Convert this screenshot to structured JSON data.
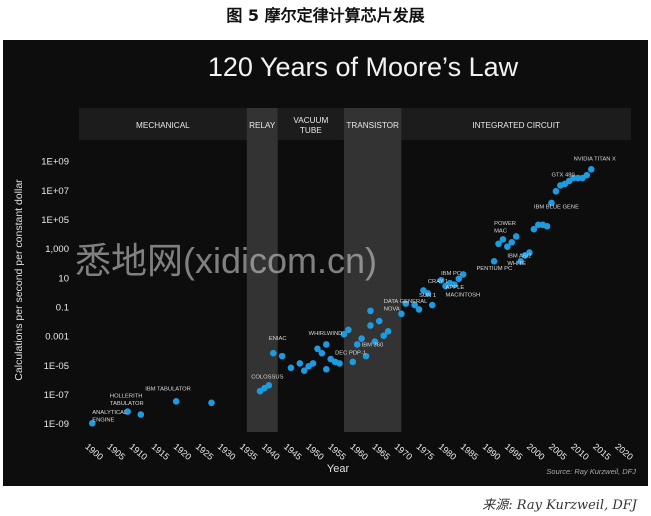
{
  "figure_caption": "图 5 摩尔定律计算芯片发展",
  "source_line": "来源: Ray Kurzweil, DFJ",
  "watermark": "悉地网(xidicom.cn)",
  "colors": {
    "panel_bg": "#0d0d0d",
    "point": "#1e9ae0",
    "band_shade": "#333333",
    "text": "#e8e8e8"
  },
  "chart_data": {
    "type": "scatter",
    "title": "120 Years of Moore’s Law",
    "xlabel": "Year",
    "ylabel": "Calculations per second per constant dollar",
    "source_note": "Source: Ray Kurzweil, DFJ",
    "log_scale_y": true,
    "xlim": [
      1897,
      2022
    ],
    "ylim_exponent": [
      -9.6,
      10.0
    ],
    "x_ticks": [
      "1900",
      "1905",
      "1910",
      "1915",
      "1920",
      "1925",
      "1930",
      "1935",
      "1940",
      "1945",
      "1950",
      "1955",
      "1960",
      "1965",
      "1970",
      "1975",
      "1980",
      "1985",
      "1990",
      "1995",
      "2000",
      "2005",
      "2010",
      "2015",
      "2020"
    ],
    "x_tick_values": [
      1900,
      1905,
      1910,
      1915,
      1920,
      1925,
      1930,
      1935,
      1940,
      1945,
      1950,
      1955,
      1960,
      1965,
      1970,
      1975,
      1980,
      1985,
      1990,
      1995,
      2000,
      2005,
      2010,
      2015,
      2020
    ],
    "y_ticks": [
      "1E+09",
      "1E+07",
      "1E+05",
      "1,000",
      "10",
      "0.1",
      "0.001",
      "1E-05",
      "1E-07",
      "1E-09"
    ],
    "y_tick_exponents": [
      9,
      7,
      5,
      3,
      1,
      -1,
      -3,
      -5,
      -7,
      -9
    ],
    "eras": [
      {
        "label": "MECHANICAL",
        "start": 1897,
        "end": 1935,
        "shaded": false
      },
      {
        "label": "RELAY",
        "start": 1935,
        "end": 1942,
        "shaded": true
      },
      {
        "label": "VACUUM TUBE",
        "start": 1942,
        "end": 1957,
        "shaded": false
      },
      {
        "label": "TRANSISTOR",
        "start": 1957,
        "end": 1970,
        "shaded": true
      },
      {
        "label": "INTEGRATED CIRCUIT",
        "start": 1970,
        "end": 2022,
        "shaded": false
      }
    ],
    "points": [
      {
        "x": 1900,
        "log_y": -9.0
      },
      {
        "x": 1908,
        "log_y": -8.2
      },
      {
        "x": 1911,
        "log_y": -8.4
      },
      {
        "x": 1919,
        "log_y": -7.5
      },
      {
        "x": 1927,
        "log_y": -7.6
      },
      {
        "x": 1938,
        "log_y": -6.8
      },
      {
        "x": 1939,
        "log_y": -6.6
      },
      {
        "x": 1940,
        "log_y": -6.4
      },
      {
        "x": 1941,
        "log_y": -4.2
      },
      {
        "x": 1943,
        "log_y": -4.4
      },
      {
        "x": 1945,
        "log_y": -5.2
      },
      {
        "x": 1947,
        "log_y": -4.9
      },
      {
        "x": 1948,
        "log_y": -5.4
      },
      {
        "x": 1949,
        "log_y": -5.1
      },
      {
        "x": 1950,
        "log_y": -4.9
      },
      {
        "x": 1951,
        "log_y": -3.9
      },
      {
        "x": 1952,
        "log_y": -4.2
      },
      {
        "x": 1953,
        "log_y": -3.6
      },
      {
        "x": 1953,
        "log_y": -5.3
      },
      {
        "x": 1954,
        "log_y": -4.6
      },
      {
        "x": 1955,
        "log_y": -4.8
      },
      {
        "x": 1956,
        "log_y": -4.9
      },
      {
        "x": 1957,
        "log_y": -2.9
      },
      {
        "x": 1958,
        "log_y": -2.6
      },
      {
        "x": 1959,
        "log_y": -4.8
      },
      {
        "x": 1960,
        "log_y": -3.6
      },
      {
        "x": 1961,
        "log_y": -3.2
      },
      {
        "x": 1962,
        "log_y": -4.4
      },
      {
        "x": 1963,
        "log_y": -2.3
      },
      {
        "x": 1963,
        "log_y": -1.3
      },
      {
        "x": 1964,
        "log_y": -3.4
      },
      {
        "x": 1965,
        "log_y": -2.0
      },
      {
        "x": 1966,
        "log_y": -3.0
      },
      {
        "x": 1967,
        "log_y": -2.7
      },
      {
        "x": 1970,
        "log_y": -1.5
      },
      {
        "x": 1971,
        "log_y": -0.8
      },
      {
        "x": 1973,
        "log_y": -0.9
      },
      {
        "x": 1974,
        "log_y": -1.2
      },
      {
        "x": 1975,
        "log_y": 0.1
      },
      {
        "x": 1976,
        "log_y": -0.1
      },
      {
        "x": 1977,
        "log_y": -0.9
      },
      {
        "x": 1979,
        "log_y": 0.8
      },
      {
        "x": 1980,
        "log_y": 0.4
      },
      {
        "x": 1981,
        "log_y": 0.6
      },
      {
        "x": 1982,
        "log_y": 0.5
      },
      {
        "x": 1983,
        "log_y": 0.9
      },
      {
        "x": 1984,
        "log_y": 1.2
      },
      {
        "x": 1991,
        "log_y": 2.1
      },
      {
        "x": 1992,
        "log_y": 3.3
      },
      {
        "x": 1993,
        "log_y": 3.6
      },
      {
        "x": 1994,
        "log_y": 3.1
      },
      {
        "x": 1995,
        "log_y": 3.4
      },
      {
        "x": 1996,
        "log_y": 3.8
      },
      {
        "x": 1997,
        "log_y": 2.1
      },
      {
        "x": 1998,
        "log_y": 2.5
      },
      {
        "x": 1999,
        "log_y": 2.7
      },
      {
        "x": 2000,
        "log_y": 4.3
      },
      {
        "x": 2001,
        "log_y": 4.6
      },
      {
        "x": 2002,
        "log_y": 4.6
      },
      {
        "x": 2003,
        "log_y": 4.5
      },
      {
        "x": 2004,
        "log_y": 6.1
      },
      {
        "x": 2005,
        "log_y": 6.9
      },
      {
        "x": 2006,
        "log_y": 7.3
      },
      {
        "x": 2007,
        "log_y": 7.4
      },
      {
        "x": 2008,
        "log_y": 7.6
      },
      {
        "x": 2009,
        "log_y": 7.8
      },
      {
        "x": 2010,
        "log_y": 7.8
      },
      {
        "x": 2011,
        "log_y": 7.8
      },
      {
        "x": 2012,
        "log_y": 8.0
      },
      {
        "x": 2013,
        "log_y": 8.4
      }
    ],
    "annotations": [
      {
        "lines": [
          "ANALYTICAL",
          "ENGINE"
        ],
        "x": 1900,
        "log_y": -8.35
      },
      {
        "lines": [
          "HOLLERITH",
          "TABULATOR"
        ],
        "x": 1904,
        "log_y": -7.25
      },
      {
        "lines": [
          "IBM TABULATOR"
        ],
        "x": 1912,
        "log_y": -6.75
      },
      {
        "lines": [
          "COLOSSUS"
        ],
        "x": 1936,
        "log_y": -5.95
      },
      {
        "lines": [
          "ENIAC"
        ],
        "x": 1940,
        "log_y": -3.3
      },
      {
        "lines": [
          "WHIRLWIND"
        ],
        "x": 1949,
        "log_y": -2.95
      },
      {
        "lines": [
          "DEC PDP-1"
        ],
        "x": 1955,
        "log_y": -4.3
      },
      {
        "lines": [
          "IBM 360"
        ],
        "x": 1961,
        "log_y": -3.75
      },
      {
        "lines": [
          "DATA GENERAL",
          "NOVA"
        ],
        "x": 1966,
        "log_y": -0.75
      },
      {
        "lines": [
          "CRAY 1"
        ],
        "x": 1976,
        "log_y": 0.6
      },
      {
        "lines": [
          "SUN 1"
        ],
        "x": 1974,
        "log_y": -0.35
      },
      {
        "lines": [
          "IBM PC"
        ],
        "x": 1979,
        "log_y": 1.15
      },
      {
        "lines": [
          "APPLE",
          "MACINTOSH"
        ],
        "x": 1980,
        "log_y": 0.2
      },
      {
        "lines": [
          "PENTIUM PC"
        ],
        "x": 1987,
        "log_y": 1.5
      },
      {
        "lines": [
          "POWER",
          "MAC"
        ],
        "x": 1991,
        "log_y": 4.6
      },
      {
        "lines": [
          "IBM AS/2",
          "WHITE"
        ],
        "x": 1994,
        "log_y": 2.35
      },
      {
        "lines": [
          "IBM BLUE GENE"
        ],
        "x": 2000,
        "log_y": 5.7
      },
      {
        "lines": [
          "GTX 480"
        ],
        "x": 2004,
        "log_y": 7.9
      },
      {
        "lines": [
          "NVIDIA TITAN X"
        ],
        "x": 2009,
        "log_y": 9.0
      }
    ]
  }
}
